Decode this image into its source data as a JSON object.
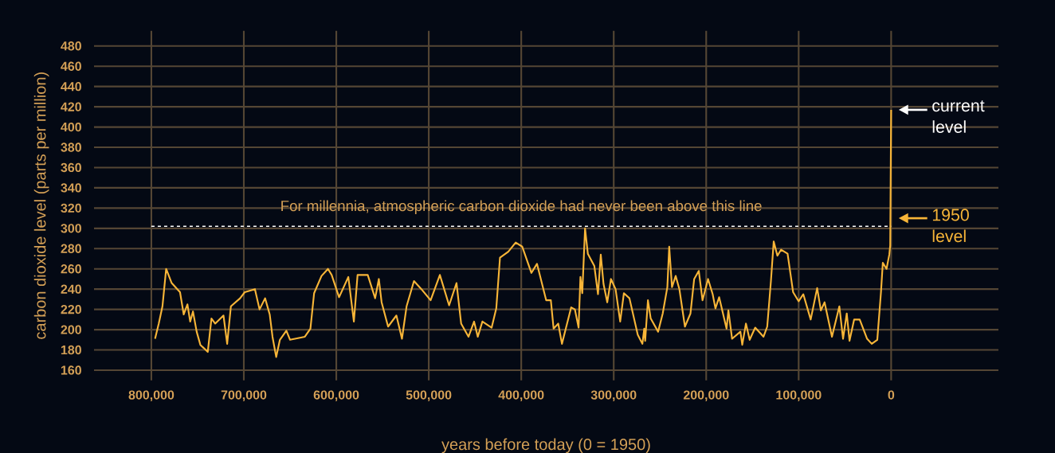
{
  "chart_data": {
    "type": "line",
    "xlabel": "years before today (0 = 1950)",
    "ylabel": "carbon dioxide level (parts per million)",
    "x": [
      796000,
      792000,
      788000,
      784000,
      778000,
      769000,
      765000,
      761000,
      758000,
      755000,
      751000,
      747000,
      739000,
      735000,
      731000,
      722000,
      718000,
      714000,
      704000,
      699000,
      688000,
      683000,
      677000,
      672000,
      669000,
      665000,
      661000,
      654000,
      650000,
      634000,
      628000,
      624000,
      616000,
      609000,
      605000,
      597000,
      587000,
      581000,
      577000,
      566000,
      558000,
      554000,
      551000,
      544000,
      535000,
      529000,
      524000,
      516000,
      508000,
      498000,
      488000,
      478000,
      470000,
      465000,
      457000,
      451000,
      447000,
      442000,
      432000,
      427000,
      423000,
      414000,
      406000,
      399000,
      389000,
      383000,
      373000,
      368000,
      365000,
      360000,
      356000,
      346000,
      342000,
      338000,
      336000,
      334000,
      331000,
      328000,
      321000,
      317000,
      314000,
      311000,
      307000,
      303000,
      298000,
      293000,
      289000,
      283000,
      274000,
      269000,
      267000,
      266000,
      263000,
      260000,
      252000,
      247000,
      242000,
      240000,
      237000,
      233000,
      229000,
      223000,
      217000,
      213000,
      208000,
      204000,
      198000,
      193000,
      190000,
      186000,
      178000,
      176000,
      172000,
      163000,
      161000,
      157000,
      153000,
      147000,
      138000,
      134000,
      130000,
      127000,
      123000,
      119000,
      112000,
      106000,
      100000,
      95000,
      87000,
      80000,
      76000,
      72000,
      64000,
      56000,
      52000,
      48000,
      45000,
      40000,
      34000,
      26000,
      21000,
      15000,
      11000,
      9000,
      5000,
      2000,
      1000,
      0
    ],
    "series": [
      {
        "color": "#f7b538",
        "values": [
          191,
          206,
          223,
          260,
          246,
          237,
          215,
          225,
          208,
          218,
          198,
          185,
          178,
          211,
          206,
          214,
          186,
          223,
          231,
          237,
          240,
          220,
          231,
          215,
          193,
          173,
          190,
          199,
          190,
          193,
          201,
          236,
          253,
          260,
          254,
          232,
          252,
          208,
          254,
          254,
          231,
          250,
          227,
          203,
          214,
          191,
          223,
          248,
          240,
          229,
          254,
          224,
          246,
          206,
          193,
          208,
          193,
          208,
          202,
          221,
          271,
          277,
          286,
          282,
          256,
          265,
          229,
          229,
          201,
          206,
          186,
          222,
          220,
          202,
          252,
          236,
          300,
          275,
          263,
          235,
          274,
          245,
          227,
          250,
          240,
          208,
          236,
          231,
          195,
          186,
          201,
          189,
          229,
          211,
          198,
          216,
          242,
          282,
          242,
          253,
          240,
          203,
          216,
          250,
          258,
          229,
          250,
          235,
          221,
          232,
          201,
          219,
          191,
          198,
          185,
          206,
          190,
          202,
          193,
          203,
          248,
          287,
          273,
          279,
          275,
          237,
          228,
          235,
          210,
          241,
          219,
          227,
          193,
          223,
          191,
          216,
          189,
          210,
          210,
          191,
          186,
          190,
          237,
          266,
          260,
          274,
          283,
          417
        ]
      }
    ],
    "xlim": [
      862000,
      -116000
    ],
    "ylim": [
      150,
      495
    ],
    "xticks": [
      {
        "value": 800000,
        "label": "800,000"
      },
      {
        "value": 700000,
        "label": "700,000"
      },
      {
        "value": 600000,
        "label": "600,000"
      },
      {
        "value": 500000,
        "label": "500,000"
      },
      {
        "value": 400000,
        "label": "400,000"
      },
      {
        "value": 300000,
        "label": "300,000"
      },
      {
        "value": 200000,
        "label": "200,000"
      },
      {
        "value": 100000,
        "label": "100,000"
      },
      {
        "value": 0,
        "label": "0"
      }
    ],
    "yticks": [
      160,
      180,
      200,
      220,
      240,
      260,
      280,
      300,
      320,
      340,
      360,
      380,
      400,
      420,
      440,
      460,
      480
    ],
    "grid": true,
    "marker": "none",
    "ref_lines": [
      {
        "axis": "y",
        "value": 302,
        "label": "For millennia, atmospheric carbon dioxide had never been above this line",
        "color": "#ffffff",
        "line_style": "dashed"
      }
    ],
    "annotations": [
      {
        "text": "current level",
        "x": 0,
        "y": 417
      },
      {
        "text": "1950 level",
        "x": 0,
        "y": 310
      }
    ]
  }
}
